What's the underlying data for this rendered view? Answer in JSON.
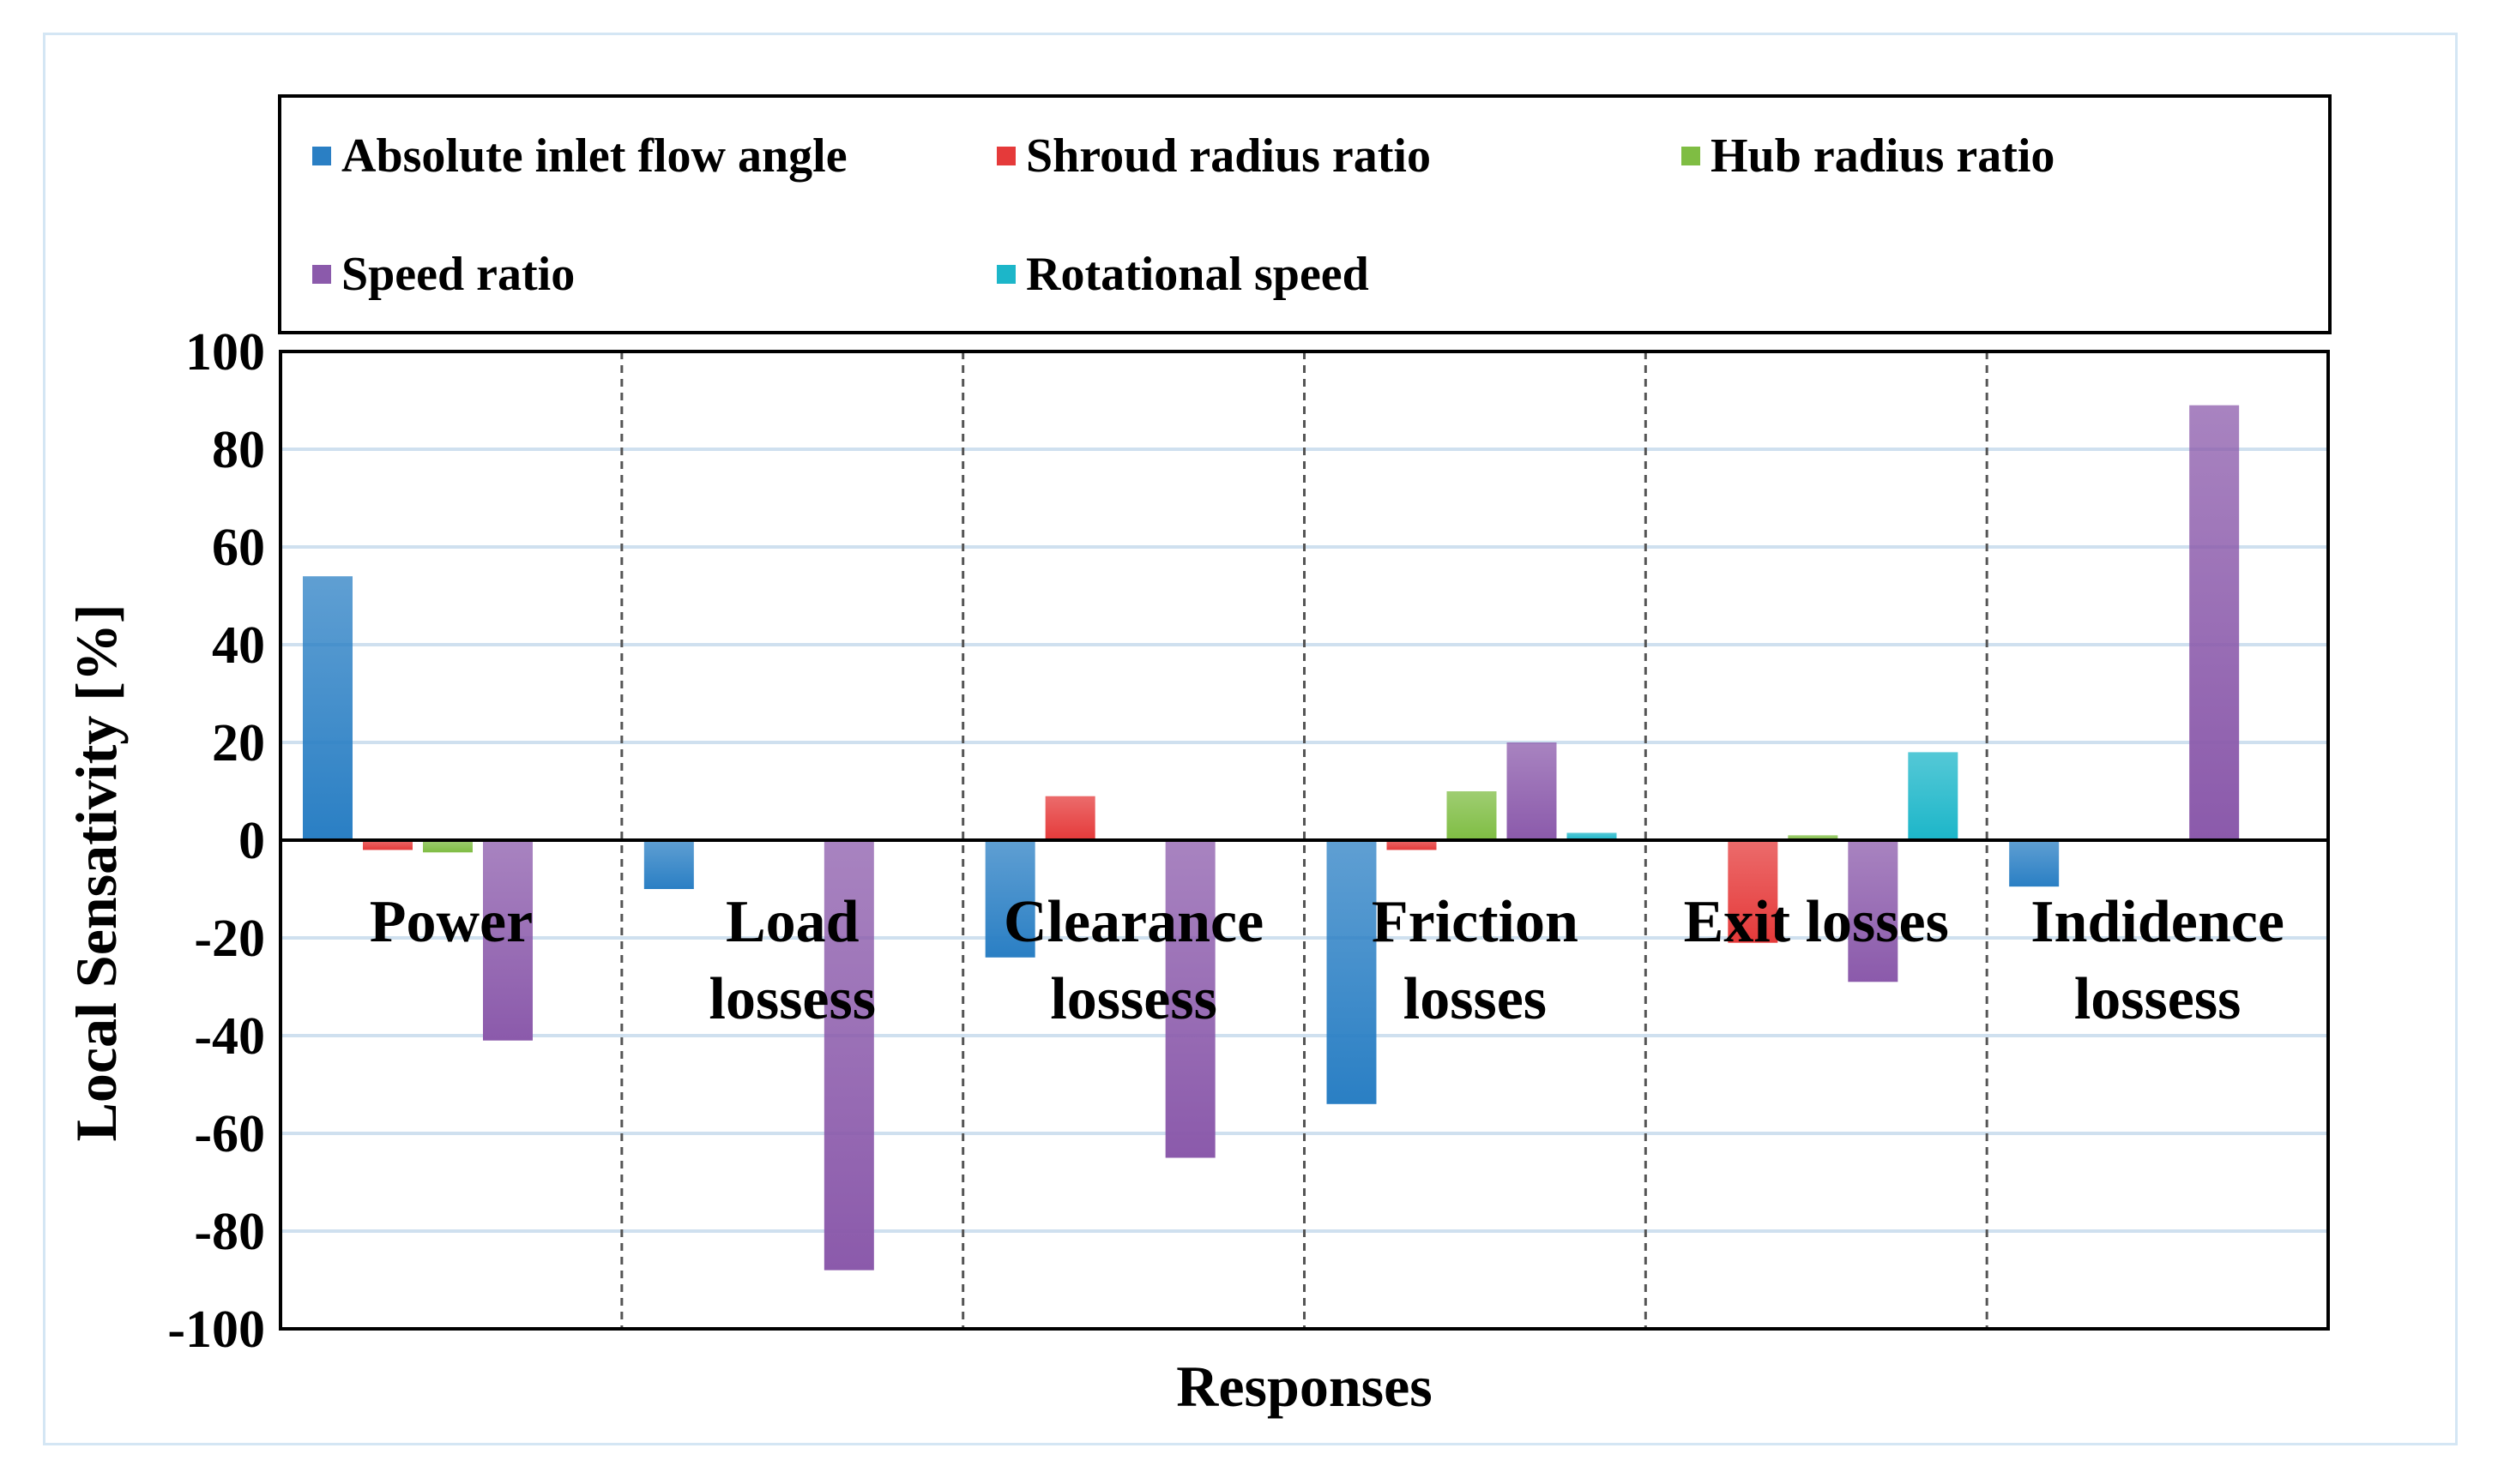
{
  "chart_data": {
    "type": "bar",
    "title": "",
    "xlabel": "Responses",
    "ylabel": "Local Sensativity [%]",
    "ylim": [
      -100,
      100
    ],
    "yticks": [
      100,
      80,
      60,
      40,
      20,
      0,
      -20,
      -40,
      -60,
      -80,
      -100
    ],
    "ytick_labels": [
      "100",
      "80",
      "60",
      "40",
      "20",
      "0",
      "-20",
      "-40",
      "-60",
      "-80",
      "-100"
    ],
    "grid": true,
    "legend_position": "top",
    "categories": [
      "Power",
      "Load lossess",
      "Clearance lossess",
      "Friction losses",
      "Exit losses",
      "Indidence lossess"
    ],
    "category_label_lines": [
      [
        "Power"
      ],
      [
        "Load",
        "lossess"
      ],
      [
        "Clearance",
        "lossess"
      ],
      [
        "Friction",
        "losses"
      ],
      [
        "Exit losses"
      ],
      [
        "Indidence",
        "lossess"
      ]
    ],
    "series": [
      {
        "name": "Absolute inlet flow angle",
        "color": "#2a7fc4",
        "values": [
          54,
          -10,
          -24,
          -54,
          0,
          -9.5
        ]
      },
      {
        "name": "Shroud radius ratio",
        "color": "#e53a3a",
        "values": [
          -2,
          0,
          9,
          -2,
          -21,
          0
        ]
      },
      {
        "name": "Hub radius ratio",
        "color": "#7fbd43",
        "values": [
          -2.5,
          0,
          0,
          10,
          1,
          0
        ]
      },
      {
        "name": "Speed ratio",
        "color": "#8b5aab",
        "values": [
          -41,
          -88,
          -65,
          20,
          -29,
          89
        ]
      },
      {
        "name": "Rotational speed",
        "color": "#1cb6c9",
        "values": [
          0,
          0,
          0,
          1.5,
          18,
          0
        ]
      }
    ]
  }
}
